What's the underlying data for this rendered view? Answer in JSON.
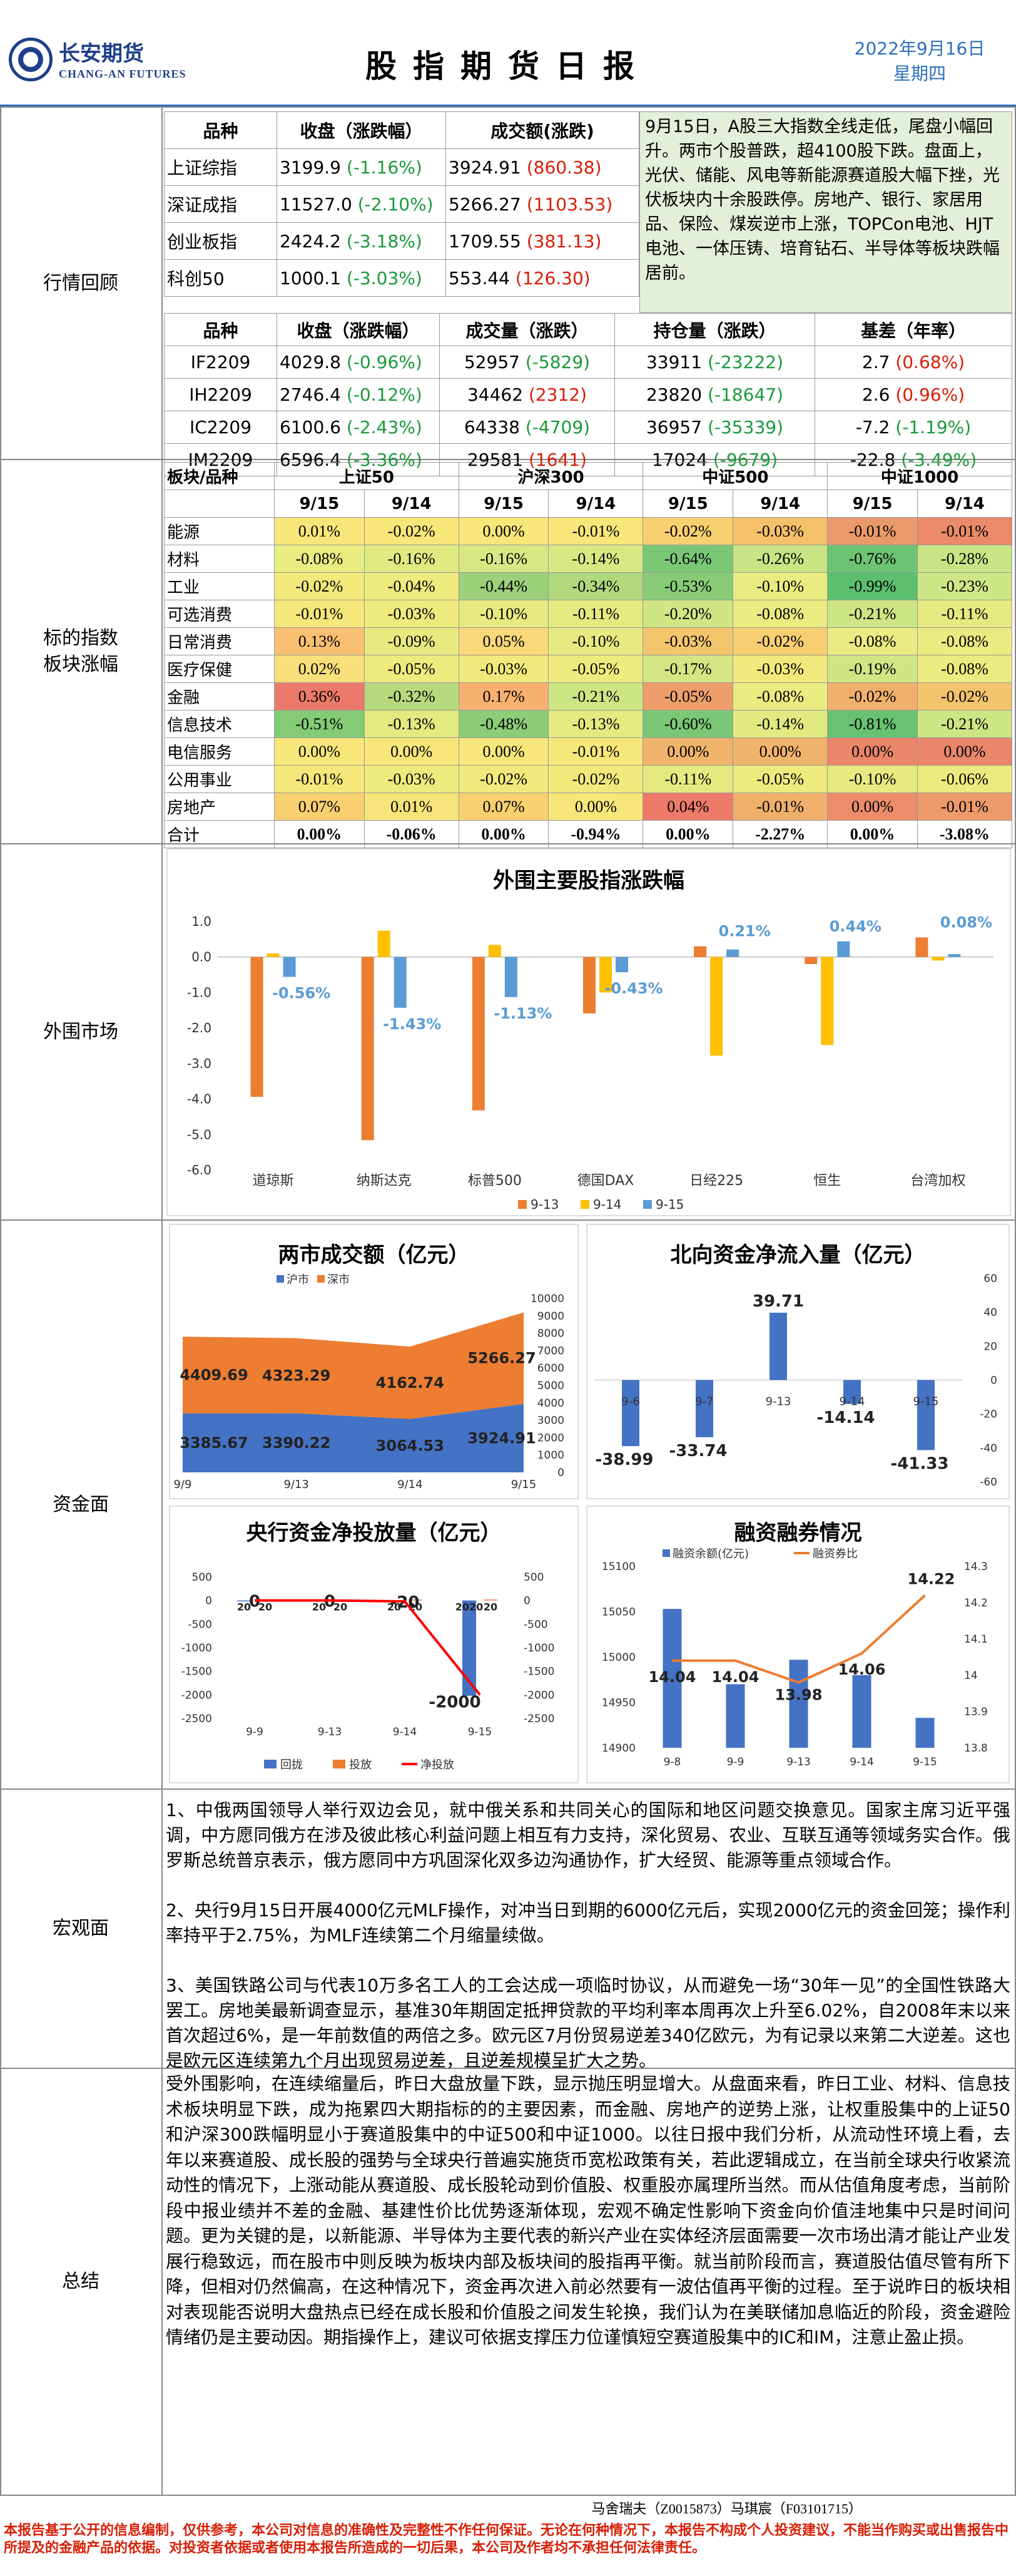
{
  "header": {
    "company_cn": "长安期货",
    "company_en": "CHANG-AN FUTURES",
    "title": "股指期货日报",
    "date": "2022年9月16日",
    "weekday": "星期四"
  },
  "sections": {
    "market_review": "行情回顾",
    "sector": "标的指数板块涨幅",
    "overseas": "外围市场",
    "funds": "资金面",
    "macro": "宏观面",
    "summary": "总结"
  },
  "index_table": {
    "headers": [
      "品种",
      "收盘（涨跌幅）",
      "成交额(涨跌)"
    ],
    "rows": [
      {
        "name": "上证综指",
        "close": "3199.9",
        "chg": "(-1.16%)",
        "amt": "3924.91",
        "amtchg": "(860.38)"
      },
      {
        "name": "深证成指",
        "close": "11527.0",
        "chg": "(-2.10%)",
        "amt": "5266.27",
        "amtchg": "(1103.53)"
      },
      {
        "name": "创业板指",
        "close": "2424.2",
        "chg": "(-3.18%)",
        "amt": "1709.55",
        "amtchg": "(381.13)"
      },
      {
        "name": "科创50",
        "close": "1000.1",
        "chg": "(-3.03%)",
        "amt": "553.44",
        "amtchg": "(126.30)"
      }
    ]
  },
  "commentary": "9月15日，A股三大指数全线走低，尾盘小幅回升。两市个股普跌，超4100股下跌。盘面上，光伏、储能、风电等新能源赛道股大幅下挫，光伏板块内十余股跌停。房地产、银行、家居用品、保险、煤炭逆市上涨，TOPCon电池、HJT电池、一体压铸、培育钻石、半导体等板块跌幅居前。",
  "futures_table": {
    "headers": [
      "品种",
      "收盘（涨跌幅）",
      "成交量（涨跌）",
      "持仓量（涨跌）",
      "基差（年率）"
    ],
    "rows": [
      {
        "name": "IF2209",
        "close": "4029.8",
        "chg": "(-0.96%)",
        "vol": "52957",
        "volchg": "(-5829)",
        "oi": "33911",
        "oichg": "(-23222)",
        "basis": "2.7",
        "rate": "(0.68%)"
      },
      {
        "name": "IH2209",
        "close": "2746.4",
        "chg": "(-0.12%)",
        "vol": "34462",
        "volchg": "(2312)",
        "oi": "23820",
        "oichg": "(-18647)",
        "basis": "2.6",
        "rate": "(0.96%)"
      },
      {
        "name": "IC2209",
        "close": "6100.6",
        "chg": "(-2.43%)",
        "vol": "64338",
        "volchg": "(-4709)",
        "oi": "36957",
        "oichg": "(-35339)",
        "basis": "-7.2",
        "rate": "(-1.19%)"
      },
      {
        "name": "IM2209",
        "close": "6596.4",
        "chg": "(-3.36%)",
        "vol": "29581",
        "volchg": "(1641)",
        "oi": "17024",
        "oichg": "(-9679)",
        "basis": "-22.8",
        "rate": "(-3.49%)"
      }
    ]
  },
  "heat_table": {
    "corner": "板块/品种",
    "indices": [
      "上证50",
      "沪深300",
      "中证500",
      "中证1000"
    ],
    "dates": [
      "9/15",
      "9/14"
    ],
    "rows": [
      {
        "name": "能源",
        "v": [
          "0.01%",
          "-0.02%",
          "0.00%",
          "-0.01%",
          "-0.02%",
          "-0.03%",
          "-0.01%",
          "-0.01%"
        ],
        "c": [
          "#f7e67a",
          "#f7e67a",
          "#f7e67a",
          "#f7e67a",
          "#f7d070",
          "#f4c06a",
          "#ea9a6a",
          "#ea8a6a"
        ]
      },
      {
        "name": "材料",
        "v": [
          "-0.08%",
          "-0.16%",
          "-0.16%",
          "-0.14%",
          "-0.64%",
          "-0.26%",
          "-0.76%",
          "-0.28%"
        ],
        "c": [
          "#e9ec80",
          "#e0ea82",
          "#d8e884",
          "#dae884",
          "#7ac875",
          "#c8e484",
          "#6cc472",
          "#c8e484"
        ]
      },
      {
        "name": "工业",
        "v": [
          "-0.02%",
          "-0.04%",
          "-0.44%",
          "-0.34%",
          "-0.53%",
          "-0.10%",
          "-0.99%",
          "-0.23%"
        ],
        "c": [
          "#f2e97a",
          "#eeea7e",
          "#9cd07a",
          "#b0d87c",
          "#88cb77",
          "#e8ec80",
          "#5cbf6e",
          "#cee686"
        ]
      },
      {
        "name": "可选消费",
        "v": [
          "-0.01%",
          "-0.03%",
          "-0.10%",
          "-0.11%",
          "-0.20%",
          "-0.08%",
          "-0.21%",
          "-0.11%"
        ],
        "c": [
          "#f5e77a",
          "#eeea7e",
          "#e6ea80",
          "#e4ea80",
          "#d0e584",
          "#eaeb80",
          "#cde584",
          "#e4ea80"
        ]
      },
      {
        "name": "日常消费",
        "v": [
          "0.13%",
          "-0.09%",
          "0.05%",
          "-0.10%",
          "-0.03%",
          "-0.02%",
          "-0.08%",
          "-0.08%"
        ],
        "c": [
          "#f8c070",
          "#e8ea80",
          "#f8d878",
          "#e6ea80",
          "#f4c66c",
          "#f7cf72",
          "#eaeb80",
          "#eaeb80"
        ]
      },
      {
        "name": "医疗保健",
        "v": [
          "0.02%",
          "-0.05%",
          "-0.03%",
          "-0.05%",
          "-0.17%",
          "-0.03%",
          "-0.19%",
          "-0.08%"
        ],
        "c": [
          "#f7e07a",
          "#eeea7e",
          "#f2e97c",
          "#eeea7e",
          "#d4e684",
          "#f2e97c",
          "#d0e584",
          "#eaeb80"
        ]
      },
      {
        "name": "金融",
        "v": [
          "0.36%",
          "-0.32%",
          "0.17%",
          "-0.21%",
          "-0.05%",
          "-0.08%",
          "-0.02%",
          "-0.02%"
        ],
        "c": [
          "#ec7a6a",
          "#b8da7e",
          "#f8b070",
          "#cee584",
          "#ee9e6a",
          "#eaeb80",
          "#f0b06c",
          "#f3c46c"
        ]
      },
      {
        "name": "信息技术",
        "v": [
          "-0.51%",
          "-0.13%",
          "-0.48%",
          "-0.13%",
          "-0.60%",
          "-0.14%",
          "-0.81%",
          "-0.21%"
        ],
        "c": [
          "#84cb76",
          "#e2ea80",
          "#8ccd77",
          "#e2ea80",
          "#7ac875",
          "#e0ea80",
          "#68c271",
          "#cde584"
        ]
      },
      {
        "name": "电信服务",
        "v": [
          "0.00%",
          "0.00%",
          "0.00%",
          "-0.01%",
          "0.00%",
          "0.00%",
          "0.00%",
          "0.00%"
        ],
        "c": [
          "#f7e67a",
          "#f7e67a",
          "#f7e67a",
          "#f5e77a",
          "#f0b46c",
          "#f0b46c",
          "#ea866a",
          "#ea866a"
        ]
      },
      {
        "name": "公用事业",
        "v": [
          "-0.01%",
          "-0.03%",
          "-0.02%",
          "-0.02%",
          "-0.11%",
          "-0.05%",
          "-0.10%",
          "-0.06%"
        ],
        "c": [
          "#f5e77a",
          "#eeea7e",
          "#f2e97c",
          "#f2e97c",
          "#e4ea80",
          "#eeea7e",
          "#e6ea80",
          "#ecea7e"
        ]
      },
      {
        "name": "房地产",
        "v": [
          "0.07%",
          "0.01%",
          "0.07%",
          "0.00%",
          "0.04%",
          "-0.01%",
          "0.00%",
          "-0.01%"
        ],
        "c": [
          "#f8d070",
          "#f7e47a",
          "#f8d070",
          "#f7e67a",
          "#ee7a6a",
          "#f0b06c",
          "#ec8c6a",
          "#ee9a6a"
        ]
      }
    ],
    "total": {
      "name": "合计",
      "v": [
        "0.00%",
        "-0.06%",
        "0.00%",
        "-0.94%",
        "0.00%",
        "-2.27%",
        "0.00%",
        "-3.08%"
      ]
    }
  },
  "overseas_chart": {
    "type": "bar",
    "title": "外围主要股指涨跌幅",
    "categories": [
      "道琼斯",
      "纳斯达克",
      "标普500",
      "德国DAX",
      "日经225",
      "恒生",
      "台湾加权"
    ],
    "series": [
      {
        "name": "9-13",
        "color": "#ed7d31",
        "values": [
          -3.94,
          -5.16,
          -4.32,
          -1.59,
          0.3,
          -0.2,
          0.55
        ]
      },
      {
        "name": "9-14",
        "color": "#ffc000",
        "values": [
          0.1,
          0.74,
          0.34,
          -1.0,
          -2.78,
          -2.48,
          -0.1
        ]
      },
      {
        "name": "9-15",
        "color": "#5b9bd5",
        "values": [
          -0.56,
          -1.43,
          -1.13,
          -0.43,
          0.21,
          0.44,
          0.08
        ]
      }
    ],
    "labels": [
      "-0.56%",
      "-1.43%",
      "-1.13%",
      "-0.43%",
      "0.21%",
      "0.44%",
      "0.08%"
    ],
    "ylim": [
      -6.0,
      1.0
    ],
    "yticks": [
      "1.0",
      "0.0",
      "-1.0",
      "-2.0",
      "-3.0",
      "-4.0",
      "-5.0",
      "-6.0"
    ]
  },
  "turnover_chart": {
    "type": "area",
    "title": "两市成交额（亿元）",
    "legend": [
      "沪市",
      "深市"
    ],
    "x": [
      "9/9",
      "9/13",
      "9/14",
      "9/15"
    ],
    "sh": [
      3385.67,
      3390.22,
      3064.53,
      3924.91
    ],
    "sz": [
      4409.69,
      4323.29,
      4162.74,
      5266.27
    ],
    "sh_labels": [
      "3385.67",
      "3390.22",
      "3064.53",
      "3924.91"
    ],
    "sz_labels": [
      "4409.69",
      "4323.29",
      "4162.74",
      "5266.27"
    ],
    "ylim": [
      0,
      10000
    ],
    "yticks": [
      "10000",
      "9000",
      "8000",
      "7000",
      "6000",
      "5000",
      "4000",
      "3000",
      "2000",
      "1000",
      "0"
    ]
  },
  "northbound_chart": {
    "type": "bar",
    "title": "北向资金净流入量（亿元）",
    "x": [
      "9-6",
      "9-7",
      "9-13",
      "9-14",
      "9-15"
    ],
    "values": [
      -38.99,
      -33.74,
      39.71,
      -14.14,
      -41.33
    ],
    "labels": [
      "-38.99",
      "-33.74",
      "39.71",
      "-14.14",
      "-41.33"
    ],
    "ylim": [
      -60,
      60
    ],
    "yticks": [
      "60",
      "40",
      "20",
      "0",
      "-20",
      "-40",
      "-60"
    ]
  },
  "pboc_chart": {
    "type": "bar",
    "title": "央行资金净投放量（亿元）",
    "x": [
      "9-9",
      "9-13",
      "9-14",
      "9-15"
    ],
    "legend": [
      "回拢",
      "投放",
      "净投放"
    ],
    "withdraw": [
      20,
      20,
      20,
      2020
    ],
    "inject": [
      20,
      20,
      20,
      20
    ],
    "net": [
      0,
      0,
      -20,
      -2000
    ],
    "withdraw_labels": [
      "20",
      "20",
      "20",
      "2020"
    ],
    "inject_labels": [
      "20",
      "20",
      "20",
      "20"
    ],
    "net_labels": [
      "0",
      "0",
      "-20",
      "-2000"
    ],
    "yticks_left": [
      "500",
      "0",
      "-500",
      "-1000",
      "-1500",
      "-2000",
      "-2500"
    ],
    "yticks_right": [
      "500",
      "0",
      "-500",
      "-1000",
      "-1500",
      "-2000",
      "-2500"
    ]
  },
  "margin_chart": {
    "type": "bar",
    "title": "融资融券情况",
    "legend": [
      "融资余额(亿元)",
      "融资券比"
    ],
    "x": [
      "9-8",
      "9-9",
      "9-13",
      "9-14",
      "9-15"
    ],
    "balance": [
      15053,
      14970,
      14997,
      14980,
      14933
    ],
    "ratio": [
      14.04,
      14.04,
      13.98,
      14.06,
      14.22
    ],
    "ratio_labels": [
      "14.04",
      "14.04",
      "13.98",
      "14.06",
      "14.22"
    ],
    "yticks_left": [
      "15100",
      "15050",
      "15000",
      "14950",
      "14900"
    ],
    "yticks_right": [
      "14.3",
      "14.2",
      "14.1",
      "14",
      "13.9",
      "13.8"
    ]
  },
  "macro": [
    "1、中俄两国领导人举行双边会见，就中俄关系和共同关心的国际和地区问题交换意见。国家主席习近平强调，中方愿同俄方在涉及彼此核心利益问题上相互有力支持，深化贸易、农业、互联互通等领域务实合作。俄罗斯总统普京表示，俄方愿同中方巩固深化双多边沟通协作，扩大经贸、能源等重点领域合作。",
    "2、央行9月15日开展4000亿元MLF操作，对冲当日到期的6000亿元后，实现2000亿元的资金回笼；操作利率持平于2.75%，为MLF连续第二个月缩量续做。",
    "3、美国铁路公司与代表10万多名工人的工会达成一项临时协议，从而避免一场“30年一见”的全国性铁路大罢工。房地美最新调查显示，基准30年期固定抵押贷款的平均利率本周再次上升至6.02%，自2008年末以来首次超过6%，是一年前数值的两倍之多。欧元区7月份贸易逆差340亿欧元，为有记录以来第二大逆差。这也是欧元区连续第九个月出现贸易逆差，且逆差规模呈扩大之势。"
  ],
  "summary": "受外围影响，在连续缩量后，昨日大盘放量下跌，显示抛压明显增大。从盘面来看，昨日工业、材料、信息技术板块明显下跌，成为拖累四大期指标的的主要因素，而金融、房地产的逆势上涨，让权重股集中的上证50和沪深300跌幅明显小于赛道股集中的中证500和中证1000。以往日报中我们分析，从流动性环境上看，去年以来赛道股、成长股的强势与全球央行普遍实施货币宽松政策有关，若此逻辑成立，在当前全球央行收紧流动性的情况下，上涨动能从赛道股、成长股轮动到价值股、权重股亦属理所当然。而从估值角度考虑，当前阶段中报业绩并不差的金融、基建性价比优势逐渐体现，宏观不确定性影响下资金向价值洼地集中只是时间问题。更为关键的是，以新能源、半导体为主要代表的新兴产业在实体经济层面需要一次市场出清才能让产业发展行稳致远，而在股市中则反映为板块内部及板块间的股指再平衡。就当前阶段而言，赛道股估值尽管有所下降，但相对仍然偏高，在这种情况下，资金再次进入前必然要有一波估值再平衡的过程。至于说昨日的板块相对表现能否说明大盘热点已经在成长股和价值股之间发生轮换，我们认为在美联储加息临近的阶段，资金避险情绪仍是主要动因。期指操作上，建议可依据支撑压力位谨慎短空赛道股集中的IC和IM，注意止盈止损。",
  "authors": "马舍瑞夫（Z0015873）马琪宸（F03101715）",
  "disclaimer": "本报告基于公开的信息编制，仅供参考，本公司对信息的准确性及完整性不作任何保证。无论在何种情况下，本报告不构成个人投资建议，不能当作购买或出售报告中所提及的金融产品的依据。对投资者依据或者使用本报告所造成的一切后果，本公司及作者均不承担任何法律责任。"
}
